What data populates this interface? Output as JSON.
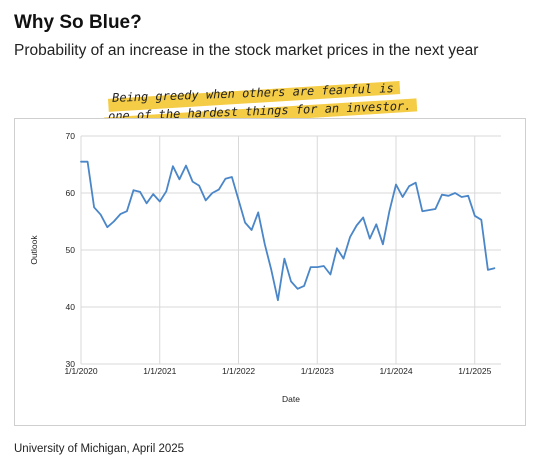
{
  "header": {
    "title": "Why So Blue?",
    "subtitle": "Probability of an increase in the stock market prices in the next year"
  },
  "annotation": {
    "line1": "Being greedy when others are fearful is",
    "line2": "one of the hardest things for an investor."
  },
  "footer": {
    "source": "University of Michigan, April 2025"
  },
  "colors": {
    "line": "#4a86c8",
    "grid": "#d9d9d9",
    "highlight": "#f5cc45"
  },
  "chart_data": {
    "type": "line",
    "xlabel": "Date",
    "ylabel": "Outlook",
    "ylim": [
      30,
      70
    ],
    "yticks": [
      30,
      40,
      50,
      60,
      70
    ],
    "xlim": [
      "2020-01-01",
      "2025-05-01"
    ],
    "xticks": [
      "1/1/2020",
      "1/1/2021",
      "1/1/2022",
      "1/1/2023",
      "1/1/2024",
      "1/1/2025"
    ],
    "grid": true,
    "series": [
      {
        "x": [
          "2020-01",
          "2020-02",
          "2020-03",
          "2020-04",
          "2020-05",
          "2020-06",
          "2020-07",
          "2020-08",
          "2020-09",
          "2020-10",
          "2020-11",
          "2020-12",
          "2021-01",
          "2021-02",
          "2021-03",
          "2021-04",
          "2021-05",
          "2021-06",
          "2021-07",
          "2021-08",
          "2021-09",
          "2021-10",
          "2021-11",
          "2021-12",
          "2022-01",
          "2022-02",
          "2022-03",
          "2022-04",
          "2022-05",
          "2022-06",
          "2022-07",
          "2022-08",
          "2022-09",
          "2022-10",
          "2022-11",
          "2022-12",
          "2023-01",
          "2023-02",
          "2023-03",
          "2023-04",
          "2023-05",
          "2023-06",
          "2023-07",
          "2023-08",
          "2023-09",
          "2023-10",
          "2023-11",
          "2023-12",
          "2024-01",
          "2024-02",
          "2024-03",
          "2024-04",
          "2024-05",
          "2024-06",
          "2024-07",
          "2024-08",
          "2024-09",
          "2024-10",
          "2024-11",
          "2024-12",
          "2025-01",
          "2025-02",
          "2025-03",
          "2025-04"
        ],
        "y": [
          65.5,
          65.5,
          57.5,
          56.2,
          54.0,
          55.0,
          56.3,
          56.8,
          60.5,
          60.2,
          58.2,
          59.8,
          58.5,
          60.3,
          64.7,
          62.4,
          64.8,
          62.0,
          61.3,
          58.7,
          60.0,
          60.6,
          62.5,
          62.8,
          58.8,
          54.8,
          53.5,
          56.6,
          51.0,
          46.5,
          41.2,
          48.5,
          44.5,
          43.2,
          43.7,
          47.0,
          47.0,
          47.2,
          45.7,
          50.3,
          48.5,
          52.3,
          54.3,
          55.7,
          52.0,
          54.5,
          51.0,
          56.8,
          61.5,
          59.3,
          61.2,
          61.8,
          56.8,
          57.0,
          57.2,
          59.7,
          59.5,
          60.0,
          59.3,
          59.5,
          56.0,
          55.3,
          46.5,
          46.8
        ]
      }
    ]
  }
}
